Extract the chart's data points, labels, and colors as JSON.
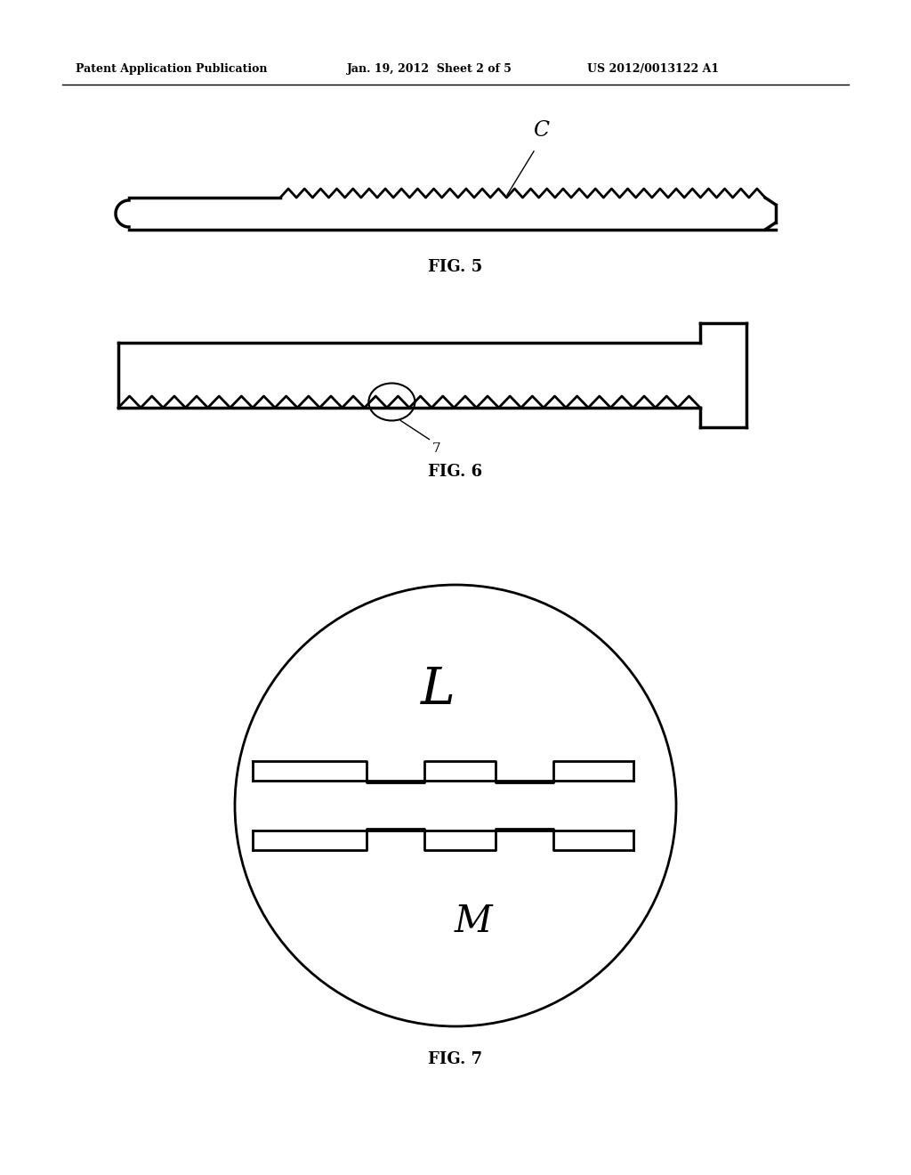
{
  "bg_color": "#ffffff",
  "header_left": "Patent Application Publication",
  "header_mid": "Jan. 19, 2012  Sheet 2 of 5",
  "header_right": "US 2012/0013122 A1",
  "fig5_label": "FIG. 5",
  "fig6_label": "FIG. 6",
  "fig7_label": "FIG. 7",
  "label_C": "C",
  "label_7": "7",
  "label_L": "L",
  "label_M": "M"
}
